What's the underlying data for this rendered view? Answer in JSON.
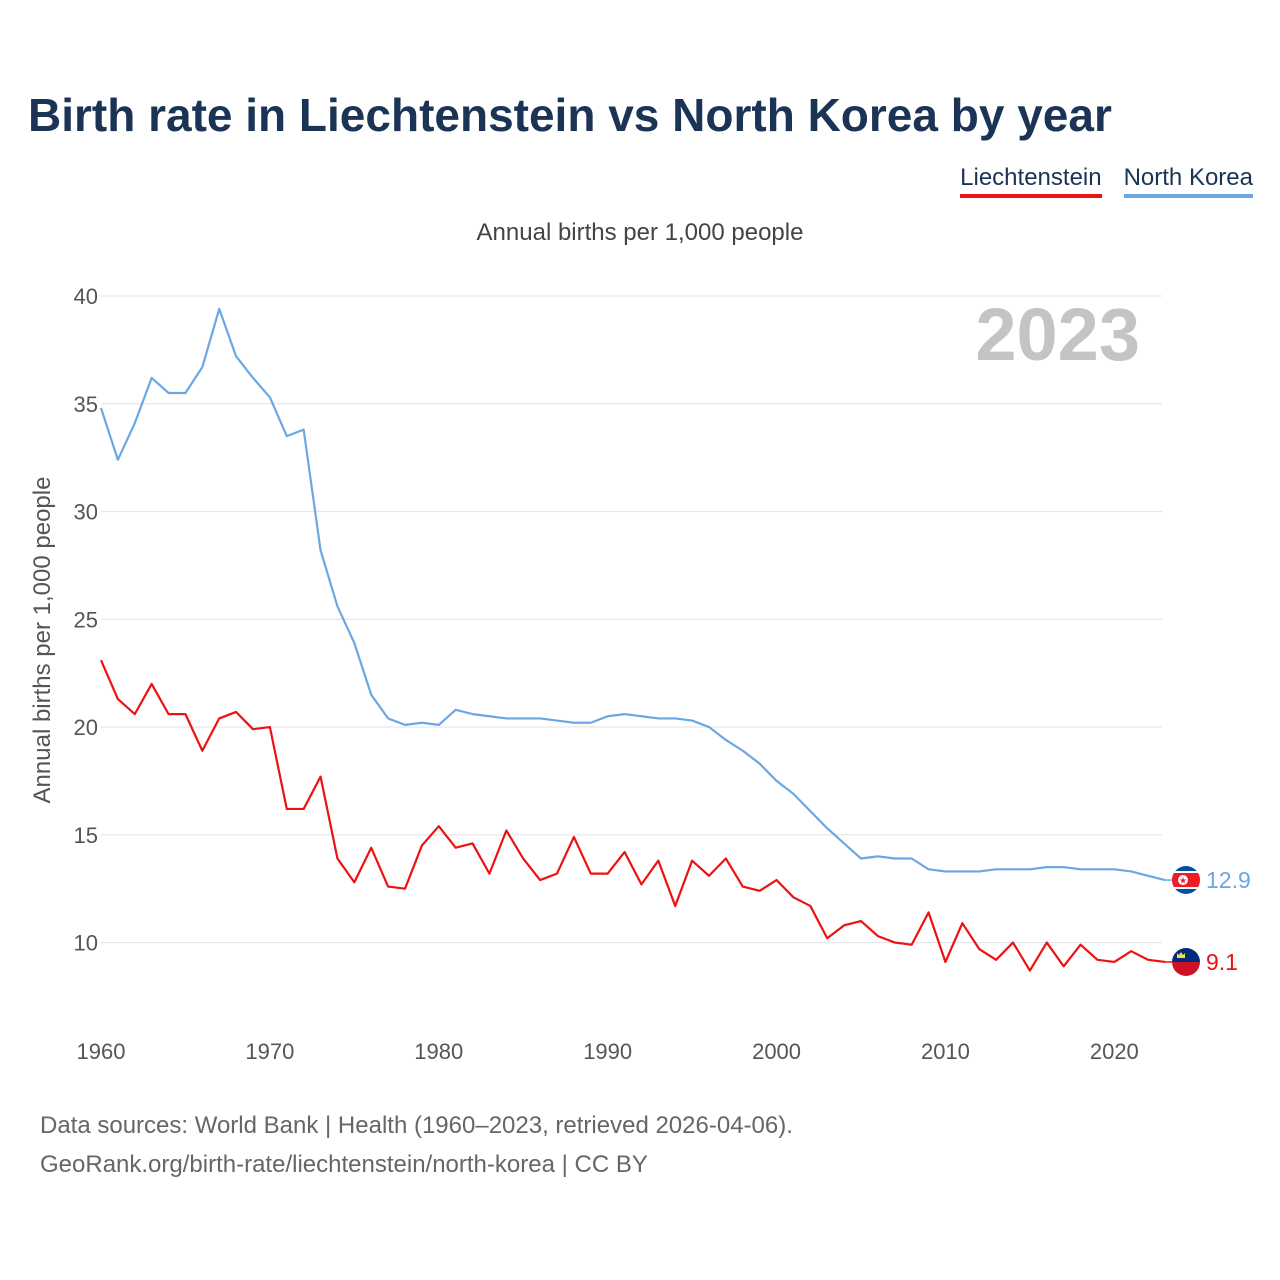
{
  "header": {
    "title": "Birth rate in Liechtenstein vs North Korea by year"
  },
  "legend": [
    {
      "label": "Liechtenstein",
      "color": "#ee1111"
    },
    {
      "label": "North Korea",
      "color": "#6aa7e4"
    }
  ],
  "footer": {
    "source_line1": "Data sources: World Bank | Health (1960–2023, retrieved 2026-04-06).",
    "source_line2": "GeoRank.org/birth-rate/liechtenstein/north-korea | CC BY"
  },
  "chart_data": {
    "type": "line",
    "subtitle": "Annual births per 1,000 people",
    "ylabel": "Annual births per 1,000 people",
    "xlabel": "",
    "year_label": "2023",
    "xlim": [
      1960,
      2023
    ],
    "ylim": [
      6.5,
      40
    ],
    "yticks": [
      10,
      15,
      20,
      25,
      30,
      35,
      40
    ],
    "xticks": [
      1960,
      1970,
      1980,
      1990,
      2000,
      2010,
      2020
    ],
    "grid": true,
    "x_start": 1960,
    "series": [
      {
        "name": "Liechtenstein",
        "color": "#ee1111",
        "end_label": "9.1",
        "values": [
          23.1,
          21.3,
          20.6,
          22.0,
          20.6,
          20.6,
          18.9,
          20.4,
          20.7,
          19.9,
          20.0,
          16.2,
          16.2,
          17.7,
          13.9,
          12.8,
          14.4,
          12.6,
          12.5,
          14.5,
          15.4,
          14.4,
          14.6,
          13.2,
          15.2,
          13.9,
          12.9,
          13.2,
          14.9,
          13.2,
          13.2,
          14.2,
          12.7,
          13.8,
          11.7,
          13.8,
          13.1,
          13.9,
          12.6,
          12.4,
          12.9,
          12.1,
          11.7,
          10.2,
          10.8,
          11.0,
          10.3,
          10.0,
          9.9,
          11.4,
          9.1,
          10.9,
          9.7,
          9.2,
          10.0,
          8.7,
          10.0,
          8.9,
          9.9,
          9.2,
          9.1,
          9.6,
          9.2,
          9.1
        ]
      },
      {
        "name": "North Korea",
        "color": "#6aa7e4",
        "end_label": "12.9",
        "values": [
          34.8,
          32.4,
          34.1,
          36.2,
          35.5,
          35.5,
          36.7,
          39.4,
          37.2,
          36.2,
          35.3,
          33.5,
          33.8,
          28.2,
          25.6,
          23.9,
          21.5,
          20.4,
          20.1,
          20.2,
          20.1,
          20.8,
          20.6,
          20.5,
          20.4,
          20.4,
          20.4,
          20.3,
          20.2,
          20.2,
          20.5,
          20.6,
          20.5,
          20.4,
          20.4,
          20.3,
          20.0,
          19.4,
          18.9,
          18.3,
          17.5,
          16.9,
          16.1,
          15.3,
          14.6,
          13.9,
          14.0,
          13.9,
          13.9,
          13.4,
          13.3,
          13.3,
          13.3,
          13.4,
          13.4,
          13.4,
          13.5,
          13.5,
          13.4,
          13.4,
          13.4,
          13.3,
          13.1,
          12.9
        ]
      }
    ]
  }
}
